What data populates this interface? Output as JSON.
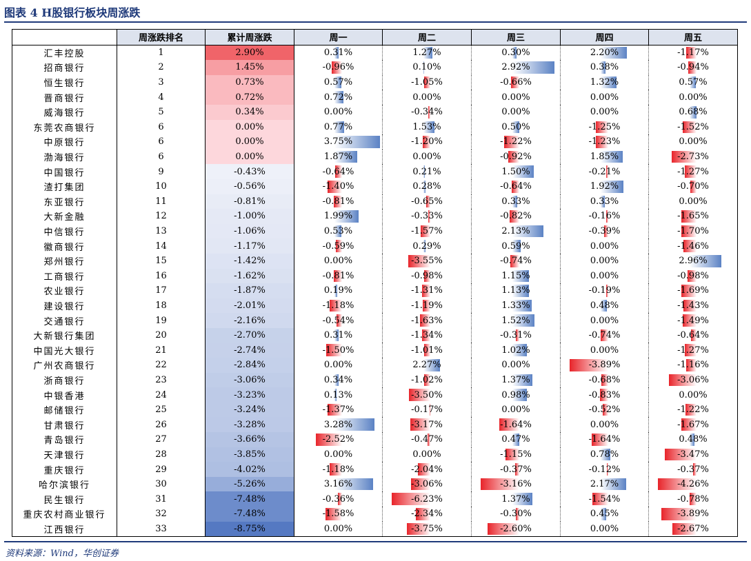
{
  "title": "图表 4   H股银行板块周涨跌",
  "source": "资料来源：Wind，华创证券",
  "chart_data": {
    "type": "table",
    "columns": [
      "",
      "周涨跌排名",
      "累计周涨跌",
      "周一",
      "周二",
      "周三",
      "周四",
      "周五"
    ],
    "rows": [
      {
        "name": "汇丰控股",
        "rank": "1",
        "total": "2.90%",
        "days": [
          "0.31%",
          "1.27%",
          "0.30%",
          "2.20%",
          "-1.17%"
        ]
      },
      {
        "name": "招商银行",
        "rank": "2",
        "total": "1.45%",
        "days": [
          "-0.96%",
          "0.10%",
          "2.92%",
          "0.38%",
          "-0.94%"
        ]
      },
      {
        "name": "恒生银行",
        "rank": "3",
        "total": "0.73%",
        "days": [
          "0.57%",
          "-1.05%",
          "-0.66%",
          "1.32%",
          "0.57%"
        ]
      },
      {
        "name": "晋商银行",
        "rank": "4",
        "total": "0.72%",
        "days": [
          "0.72%",
          "0.00%",
          "0.00%",
          "0.00%",
          "0.00%"
        ]
      },
      {
        "name": "威海银行",
        "rank": "5",
        "total": "0.34%",
        "days": [
          "0.00%",
          "-0.34%",
          "0.00%",
          "0.00%",
          "0.68%"
        ]
      },
      {
        "name": "东莞农商银行",
        "rank": "6",
        "total": "0.00%",
        "days": [
          "0.77%",
          "1.53%",
          "0.50%",
          "-1.25%",
          "-1.52%"
        ]
      },
      {
        "name": "中原银行",
        "rank": "6",
        "total": "0.00%",
        "days": [
          "3.75%",
          "-1.20%",
          "-1.22%",
          "-1.23%",
          "0.00%"
        ]
      },
      {
        "name": "渤海银行",
        "rank": "6",
        "total": "0.00%",
        "days": [
          "1.87%",
          "0.00%",
          "-0.92%",
          "1.85%",
          "-2.73%"
        ]
      },
      {
        "name": "中国银行",
        "rank": "9",
        "total": "-0.43%",
        "days": [
          "-0.64%",
          "0.21%",
          "1.50%",
          "-0.21%",
          "-1.27%"
        ]
      },
      {
        "name": "渣打集团",
        "rank": "10",
        "total": "-0.56%",
        "days": [
          "-1.40%",
          "0.28%",
          "-0.64%",
          "1.92%",
          "-0.70%"
        ]
      },
      {
        "name": "东亚银行",
        "rank": "11",
        "total": "-0.81%",
        "days": [
          "-0.81%",
          "-0.65%",
          "0.33%",
          "0.33%",
          "0.00%"
        ]
      },
      {
        "name": "大新金融",
        "rank": "12",
        "total": "-1.00%",
        "days": [
          "1.99%",
          "-0.33%",
          "-0.82%",
          "-0.16%",
          "-1.65%"
        ]
      },
      {
        "name": "中信银行",
        "rank": "13",
        "total": "-1.06%",
        "days": [
          "0.53%",
          "-1.57%",
          "2.13%",
          "-0.39%",
          "-1.70%"
        ]
      },
      {
        "name": "徽商银行",
        "rank": "14",
        "total": "-1.17%",
        "days": [
          "-0.59%",
          "0.29%",
          "0.59%",
          "0.00%",
          "-1.46%"
        ]
      },
      {
        "name": "郑州银行",
        "rank": "15",
        "total": "-1.42%",
        "days": [
          "0.00%",
          "-3.55%",
          "-0.74%",
          "0.00%",
          "2.96%"
        ]
      },
      {
        "name": "工商银行",
        "rank": "16",
        "total": "-1.62%",
        "days": [
          "-0.81%",
          "-0.98%",
          "1.15%",
          "0.00%",
          "-0.98%"
        ]
      },
      {
        "name": "农业银行",
        "rank": "17",
        "total": "-1.87%",
        "days": [
          "0.19%",
          "-1.31%",
          "1.13%",
          "-0.19%",
          "-1.69%"
        ]
      },
      {
        "name": "建设银行",
        "rank": "18",
        "total": "-2.01%",
        "days": [
          "-1.18%",
          "-1.19%",
          "1.33%",
          "0.48%",
          "-1.43%"
        ]
      },
      {
        "name": "交通银行",
        "rank": "19",
        "total": "-2.16%",
        "days": [
          "-0.54%",
          "-1.63%",
          "1.52%",
          "0.00%",
          "-1.49%"
        ]
      },
      {
        "name": "大新银行集团",
        "rank": "20",
        "total": "-2.70%",
        "days": [
          "0.31%",
          "-1.34%",
          "-0.31%",
          "-0.74%",
          "-0.64%"
        ]
      },
      {
        "name": "中国光大银行",
        "rank": "21",
        "total": "-2.74%",
        "days": [
          "-1.50%",
          "-1.01%",
          "1.02%",
          "0.00%",
          "-1.27%"
        ]
      },
      {
        "name": "广州农商银行",
        "rank": "22",
        "total": "-2.84%",
        "days": [
          "0.00%",
          "2.27%",
          "0.00%",
          "-3.89%",
          "-1.16%"
        ]
      },
      {
        "name": "浙商银行",
        "rank": "23",
        "total": "-3.06%",
        "days": [
          "0.34%",
          "-1.02%",
          "1.37%",
          "-0.68%",
          "-3.06%"
        ]
      },
      {
        "name": "中银香港",
        "rank": "24",
        "total": "-3.23%",
        "days": [
          "0.13%",
          "-3.50%",
          "0.98%",
          "-0.83%",
          "0.00%"
        ]
      },
      {
        "name": "邮储银行",
        "rank": "25",
        "total": "-3.24%",
        "days": [
          "-1.37%",
          "-0.17%",
          "0.00%",
          "-0.52%",
          "-1.22%"
        ]
      },
      {
        "name": "甘肃银行",
        "rank": "26",
        "total": "-3.28%",
        "days": [
          "3.28%",
          "-3.17%",
          "-1.64%",
          "0.00%",
          "-1.67%"
        ]
      },
      {
        "name": "青岛银行",
        "rank": "27",
        "total": "-3.66%",
        "days": [
          "-2.52%",
          "-0.47%",
          "0.47%",
          "-1.64%",
          "0.48%"
        ]
      },
      {
        "name": "天津银行",
        "rank": "28",
        "total": "-3.85%",
        "days": [
          "0.00%",
          "0.00%",
          "-1.15%",
          "0.78%",
          "-3.47%"
        ]
      },
      {
        "name": "重庆银行",
        "rank": "29",
        "total": "-4.02%",
        "days": [
          "-1.18%",
          "-2.04%",
          "-0.37%",
          "-0.12%",
          "-0.37%"
        ]
      },
      {
        "name": "哈尔滨银行",
        "rank": "30",
        "total": "-5.26%",
        "days": [
          "3.16%",
          "-3.06%",
          "-3.16%",
          "2.17%",
          "-4.26%"
        ]
      },
      {
        "name": "民生银行",
        "rank": "31",
        "total": "-7.48%",
        "days": [
          "-0.36%",
          "-6.23%",
          "1.37%",
          "-1.54%",
          "-0.78%"
        ]
      },
      {
        "name": "重庆农村商业银行",
        "rank": "32",
        "total": "-7.48%",
        "days": [
          "-1.58%",
          "-2.34%",
          "-0.30%",
          "0.45%",
          "-3.89%"
        ]
      },
      {
        "name": "江西银行",
        "rank": "33",
        "total": "-8.75%",
        "days": [
          "0.00%",
          "-3.75%",
          "-2.60%",
          "0.00%",
          "-2.67%"
        ]
      }
    ]
  }
}
